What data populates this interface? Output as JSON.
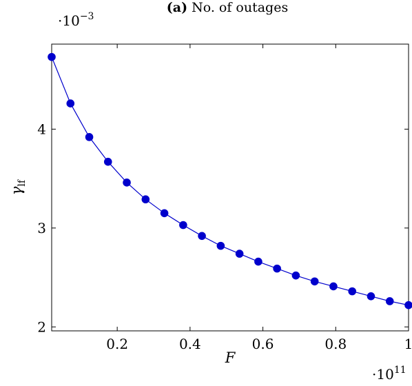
{
  "chart_data": {
    "type": "line",
    "title_prefix": "(a)",
    "title_rest": " No. of outages",
    "xlabel": "F",
    "ylabel_main": "γ",
    "ylabel_sub": "lf",
    "x_multiplier_base": "·10",
    "x_multiplier_exp": "11",
    "y_multiplier_base": "·10",
    "y_multiplier_exp": "−3",
    "xlim": [
      0.02,
      1.0
    ],
    "ylim": [
      1.96,
      4.86
    ],
    "x_ticks": [
      0.2,
      0.4,
      0.6,
      0.8,
      1.0
    ],
    "x_tick_labels": [
      "0.2",
      "0.4",
      "0.6",
      "0.8",
      "1"
    ],
    "y_ticks": [
      2,
      3,
      4
    ],
    "y_tick_labels": [
      "2",
      "3",
      "4"
    ],
    "series": [
      {
        "color": "#0000cc",
        "x": [
          0.02,
          0.0716,
          0.1232,
          0.1747,
          0.2263,
          0.2779,
          0.3295,
          0.3811,
          0.4326,
          0.4842,
          0.5358,
          0.5874,
          0.6389,
          0.6905,
          0.7421,
          0.7937,
          0.8453,
          0.8968,
          0.9484,
          1.0
        ],
        "y": [
          4.73,
          4.26,
          3.92,
          3.67,
          3.46,
          3.29,
          3.15,
          3.03,
          2.92,
          2.82,
          2.74,
          2.66,
          2.59,
          2.52,
          2.46,
          2.41,
          2.36,
          2.31,
          2.26,
          2.22
        ]
      }
    ],
    "grid": false,
    "legend": "none"
  }
}
